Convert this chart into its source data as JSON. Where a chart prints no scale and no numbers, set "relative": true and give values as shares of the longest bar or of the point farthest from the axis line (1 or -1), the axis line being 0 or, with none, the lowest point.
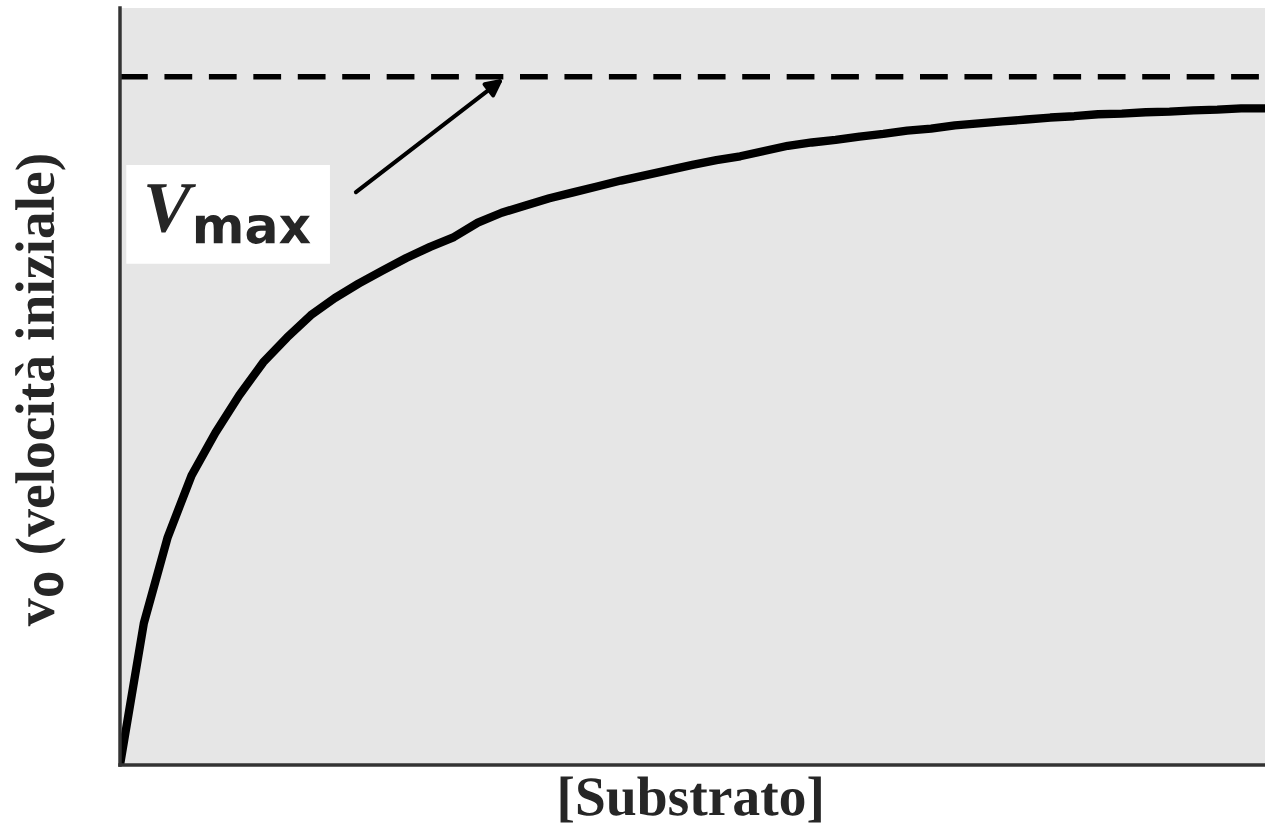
{
  "chart_data": {
    "type": "line",
    "relative": true,
    "xlabel": "[Substrato]",
    "ylabel": "v$_{0}$ (velocità iniziale)",
    "categories": [
      null,
      null,
      null,
      null,
      null,
      null,
      null,
      null,
      null,
      null,
      null,
      null,
      null,
      null,
      null,
      null,
      null,
      null,
      null,
      null,
      null,
      null,
      null,
      null,
      null,
      null,
      null,
      null,
      null,
      null,
      null,
      null,
      null,
      null,
      null,
      null,
      null,
      null,
      null,
      null,
      null,
      null,
      null,
      null,
      null,
      null,
      null,
      null,
      null
    ],
    "series": [
      {
        "color": "#000000",
        "values": [
          0,
          0.216,
          0.347,
          0.441,
          0.506,
          0.563,
          0.613,
          0.651,
          0.685,
          0.711,
          0.733,
          0.753,
          0.772,
          0.789,
          0.804,
          0.826,
          0.841,
          0.852,
          0.863,
          0.872,
          0.881,
          0.89,
          0.898,
          0.906,
          0.914,
          0.921,
          0.927,
          0.935,
          0.943,
          0.948,
          0.952,
          0.957,
          0.961,
          0.966,
          0.969,
          0.974,
          0.977,
          0.98,
          0.983,
          0.986,
          0.988,
          0.991,
          0.992,
          0.994,
          0.995,
          0.997,
          0.998,
          1,
          1
        ]
      }
    ],
    "ref_lines": [
      {
        "axis": "y",
        "value": 1.048,
        "color": "#000000",
        "line_style": "dashed"
      }
    ],
    "annotations": [
      {
        "text": "V$_{max}$",
        "y": 1.048
      }
    ],
    "line_style": "solid",
    "marker": "none",
    "legend": false
  }
}
